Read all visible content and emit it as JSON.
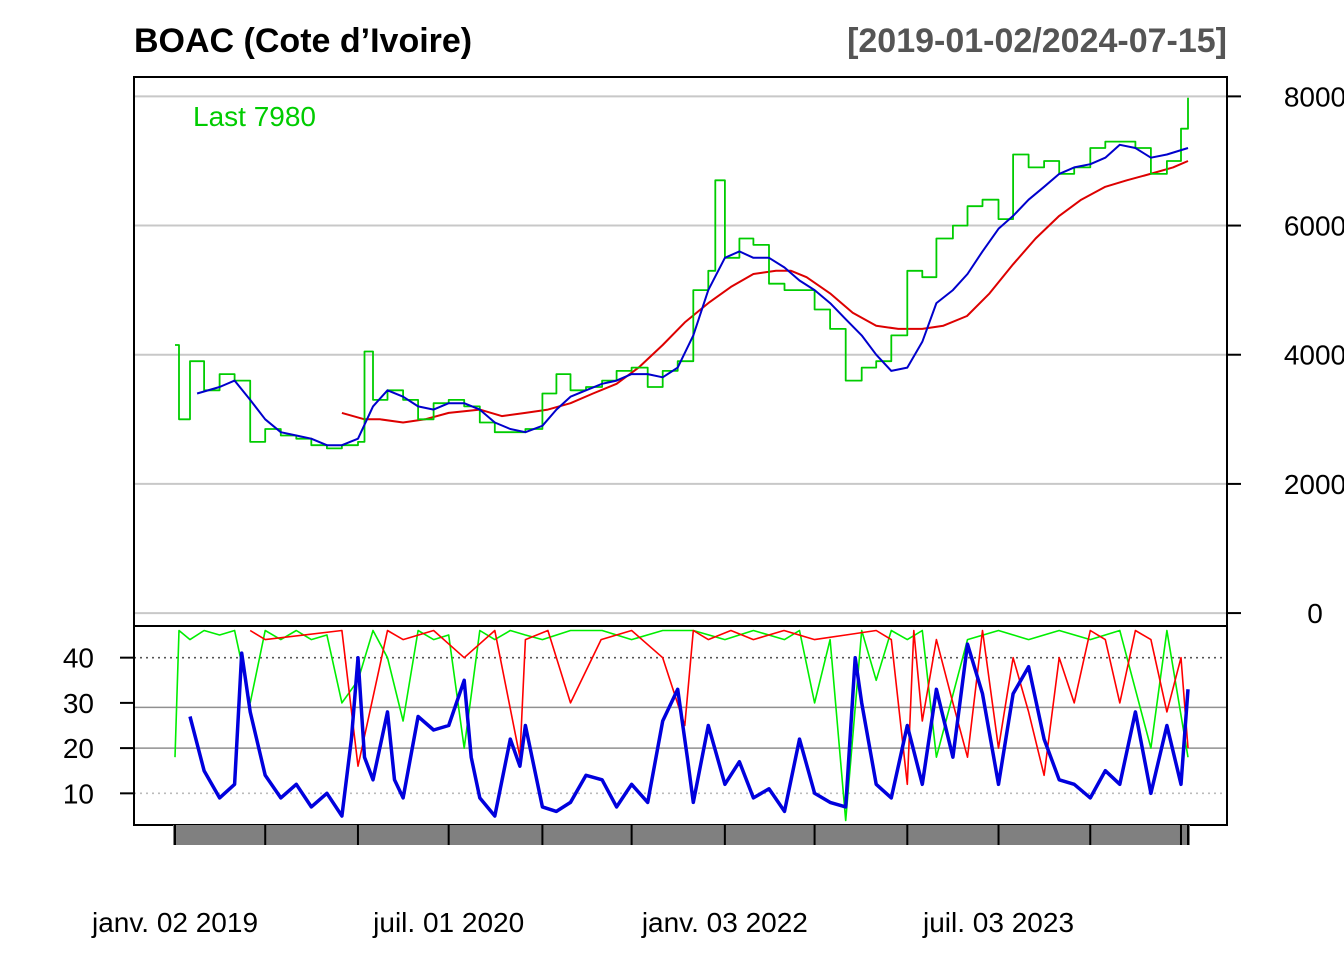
{
  "title": "BOAC (Cote d’Ivoire)",
  "date_range": "[2019-01-02/2024-07-15]",
  "colors": {
    "price": "#00cc00",
    "ma_short": "#0000cc",
    "ma_long": "#dd0000",
    "adx": "#0000dd",
    "di_plus": "#00ee00",
    "di_minus": "#ff0000",
    "grid": "#c8c8c8",
    "x_axis_band": "#808080"
  },
  "chart_data": [
    {
      "type": "line",
      "panel": "price",
      "last_label": "Last 7980",
      "ylim": [
        -200,
        8300
      ],
      "y_ticks": [
        0,
        2000,
        4000,
        6000,
        8000
      ],
      "y_tick_labels": [
        "0",
        "2000",
        "4000",
        "6000",
        "8000"
      ],
      "grid": true,
      "series": [
        {
          "key": "price",
          "x": [
            "2019-01-02",
            "2019-01-10",
            "2019-02-01",
            "2019-03-01",
            "2019-04-01",
            "2019-05-01",
            "2019-06-01",
            "2019-07-01",
            "2019-08-01",
            "2019-09-01",
            "2019-10-01",
            "2019-11-01",
            "2019-12-01",
            "2020-01-02",
            "2020-01-15",
            "2020-02-01",
            "2020-03-01",
            "2020-04-01",
            "2020-05-01",
            "2020-06-01",
            "2020-07-01",
            "2020-08-01",
            "2020-09-01",
            "2020-10-01",
            "2020-11-01",
            "2020-12-01",
            "2021-01-04",
            "2021-02-01",
            "2021-03-01",
            "2021-04-01",
            "2021-05-03",
            "2021-06-01",
            "2021-07-01",
            "2021-08-02",
            "2021-09-01",
            "2021-10-01",
            "2021-11-01",
            "2021-12-01",
            "2021-12-15",
            "2022-01-03",
            "2022-02-01",
            "2022-03-01",
            "2022-04-01",
            "2022-05-02",
            "2022-06-01",
            "2022-07-01",
            "2022-08-01",
            "2022-09-01",
            "2022-10-03",
            "2022-11-01",
            "2022-12-01",
            "2023-01-02",
            "2023-02-01",
            "2023-03-01",
            "2023-04-03",
            "2023-05-02",
            "2023-06-01",
            "2023-07-03",
            "2023-08-01",
            "2023-09-01",
            "2023-10-02",
            "2023-11-01",
            "2023-12-01",
            "2024-01-02",
            "2024-02-01",
            "2024-03-01",
            "2024-04-01",
            "2024-05-02",
            "2024-06-03",
            "2024-07-01",
            "2024-07-15"
          ],
          "values": [
            4150,
            3000,
            3900,
            3450,
            3700,
            3600,
            2650,
            2850,
            2750,
            2700,
            2600,
            2550,
            2600,
            2650,
            4050,
            3300,
            3450,
            3300,
            3000,
            3250,
            3300,
            3200,
            2950,
            2800,
            2800,
            2850,
            3400,
            3700,
            3450,
            3500,
            3600,
            3750,
            3800,
            3500,
            3750,
            3900,
            5000,
            5300,
            6700,
            5500,
            5800,
            5700,
            5100,
            5000,
            5000,
            4700,
            4400,
            3600,
            3800,
            3900,
            4300,
            5300,
            5200,
            5800,
            6000,
            6300,
            6400,
            6100,
            7100,
            6900,
            7000,
            6800,
            6900,
            7200,
            7300,
            7300,
            7200,
            6800,
            7000,
            7500,
            7980
          ]
        },
        {
          "key": "ma_short",
          "x": [
            "2019-02-15",
            "2019-04-01",
            "2019-05-01",
            "2019-06-01",
            "2019-07-01",
            "2019-08-01",
            "2019-09-01",
            "2019-10-01",
            "2019-11-01",
            "2019-12-01",
            "2020-01-02",
            "2020-02-01",
            "2020-03-01",
            "2020-04-01",
            "2020-05-01",
            "2020-06-01",
            "2020-07-01",
            "2020-08-01",
            "2020-09-01",
            "2020-10-01",
            "2020-11-01",
            "2020-12-01",
            "2021-01-04",
            "2021-02-01",
            "2021-03-01",
            "2021-04-01",
            "2021-05-03",
            "2021-06-01",
            "2021-07-01",
            "2021-08-02",
            "2021-09-01",
            "2021-10-01",
            "2021-11-01",
            "2021-12-01",
            "2022-01-03",
            "2022-02-01",
            "2022-03-01",
            "2022-04-01",
            "2022-05-02",
            "2022-06-01",
            "2022-07-01",
            "2022-08-01",
            "2022-09-01",
            "2022-10-03",
            "2022-11-01",
            "2022-12-01",
            "2023-01-02",
            "2023-02-01",
            "2023-03-01",
            "2023-04-03",
            "2023-05-02",
            "2023-06-01",
            "2023-07-03",
            "2023-08-01",
            "2023-09-01",
            "2023-10-02",
            "2023-11-01",
            "2023-12-01",
            "2024-01-02",
            "2024-02-01",
            "2024-03-01",
            "2024-04-01",
            "2024-05-02",
            "2024-06-03",
            "2024-07-15"
          ],
          "values": [
            3400,
            3500,
            3600,
            3300,
            3000,
            2800,
            2750,
            2700,
            2600,
            2600,
            2700,
            3200,
            3450,
            3350,
            3200,
            3150,
            3250,
            3250,
            3150,
            2950,
            2850,
            2800,
            2900,
            3150,
            3350,
            3450,
            3550,
            3600,
            3700,
            3700,
            3650,
            3800,
            4300,
            5000,
            5500,
            5600,
            5500,
            5500,
            5350,
            5150,
            5000,
            4800,
            4550,
            4300,
            4000,
            3750,
            3800,
            4200,
            4800,
            5000,
            5250,
            5600,
            5950,
            6150,
            6400,
            6600,
            6800,
            6900,
            6950,
            7050,
            7250,
            7200,
            7050,
            7100,
            7200
          ]
        },
        {
          "key": "ma_long",
          "x": [
            "2019-12-01",
            "2020-01-15",
            "2020-02-15",
            "2020-04-01",
            "2020-05-15",
            "2020-07-01",
            "2020-09-01",
            "2020-10-15",
            "2020-12-01",
            "2021-01-15",
            "2021-03-01",
            "2021-04-15",
            "2021-06-01",
            "2021-07-15",
            "2021-09-01",
            "2021-10-15",
            "2021-12-01",
            "2022-01-15",
            "2022-03-01",
            "2022-04-15",
            "2022-05-15",
            "2022-06-15",
            "2022-08-01",
            "2022-09-15",
            "2022-11-01",
            "2022-12-15",
            "2023-02-01",
            "2023-03-15",
            "2023-05-01",
            "2023-06-15",
            "2023-08-01",
            "2023-09-15",
            "2023-11-01",
            "2023-12-15",
            "2024-02-01",
            "2024-03-15",
            "2024-05-01",
            "2024-06-15",
            "2024-07-15"
          ],
          "values": [
            3100,
            3000,
            3000,
            2950,
            3000,
            3100,
            3150,
            3050,
            3100,
            3150,
            3250,
            3400,
            3550,
            3800,
            4150,
            4500,
            4800,
            5050,
            5250,
            5300,
            5300,
            5200,
            4950,
            4650,
            4450,
            4400,
            4400,
            4450,
            4600,
            4950,
            5400,
            5800,
            6150,
            6400,
            6600,
            6700,
            6800,
            6900,
            7000
          ]
        }
      ]
    },
    {
      "type": "line",
      "panel": "indicator",
      "ylim": [
        3,
        47
      ],
      "y_ticks": [
        10,
        20,
        30,
        40
      ],
      "y_tick_labels": [
        "10",
        "20",
        "30",
        "40"
      ],
      "reference_lines": [
        10,
        20,
        29,
        40
      ],
      "x_tick_labels": [
        "janv. 02 2019",
        "juil. 01 2020",
        "janv. 03 2022",
        "juil. 03 2023"
      ],
      "x_tick_dates": [
        "2019-01-02",
        "2020-07-01",
        "2022-01-03",
        "2023-07-03"
      ],
      "series": [
        {
          "key": "adx",
          "x": [
            "2019-02-01",
            "2019-03-01",
            "2019-04-01",
            "2019-05-01",
            "2019-05-15",
            "2019-06-01",
            "2019-07-01",
            "2019-08-01",
            "2019-09-01",
            "2019-10-01",
            "2019-11-01",
            "2019-12-01",
            "2019-12-20",
            "2020-01-02",
            "2020-01-15",
            "2020-02-01",
            "2020-03-01",
            "2020-03-15",
            "2020-04-01",
            "2020-05-01",
            "2020-06-01",
            "2020-07-01",
            "2020-08-01",
            "2020-08-15",
            "2020-09-01",
            "2020-10-01",
            "2020-11-01",
            "2020-11-20",
            "2020-12-01",
            "2021-01-04",
            "2021-02-01",
            "2021-03-01",
            "2021-04-01",
            "2021-05-03",
            "2021-06-01",
            "2021-07-01",
            "2021-08-02",
            "2021-09-01",
            "2021-10-01",
            "2021-10-20",
            "2021-11-01",
            "2021-12-01",
            "2022-01-03",
            "2022-02-01",
            "2022-03-01",
            "2022-04-01",
            "2022-05-02",
            "2022-06-01",
            "2022-07-01",
            "2022-08-01",
            "2022-09-01",
            "2022-09-20",
            "2022-10-03",
            "2022-11-01",
            "2022-12-01",
            "2023-01-02",
            "2023-02-01",
            "2023-03-01",
            "2023-04-03",
            "2023-05-02",
            "2023-06-01",
            "2023-07-03",
            "2023-08-01",
            "2023-09-01",
            "2023-10-02",
            "2023-11-01",
            "2023-12-01",
            "2024-01-02",
            "2024-02-01",
            "2024-03-01",
            "2024-04-01",
            "2024-05-02",
            "2024-06-03",
            "2024-07-01",
            "2024-07-15"
          ],
          "values": [
            27,
            15,
            9,
            12,
            41,
            28,
            14,
            9,
            12,
            7,
            10,
            5,
            22,
            40,
            18,
            13,
            28,
            13,
            9,
            27,
            24,
            25,
            35,
            18,
            9,
            5,
            22,
            16,
            25,
            7,
            6,
            8,
            14,
            13,
            7,
            12,
            8,
            26,
            33,
            18,
            8,
            25,
            12,
            17,
            9,
            11,
            6,
            22,
            10,
            8,
            7,
            40,
            30,
            12,
            9,
            25,
            12,
            33,
            18,
            43,
            32,
            12,
            32,
            38,
            22,
            13,
            12,
            9,
            15,
            12,
            28,
            10,
            25,
            12,
            33
          ]
        },
        {
          "key": "di_plus",
          "x": [
            "2019-01-02",
            "2019-01-10",
            "2019-02-01",
            "2019-03-01",
            "2019-04-01",
            "2019-05-01",
            "2019-06-01",
            "2019-07-01",
            "2019-08-01",
            "2019-09-01",
            "2019-10-01",
            "2019-11-01",
            "2019-12-01",
            "2020-01-02",
            "2020-02-01",
            "2020-03-01",
            "2020-04-01",
            "2020-05-01",
            "2020-06-01",
            "2020-07-01",
            "2020-08-01",
            "2020-09-01",
            "2020-10-01",
            "2020-11-01",
            "2020-12-01",
            "2021-01-04",
            "2021-03-01",
            "2021-05-03",
            "2021-07-01",
            "2021-09-01",
            "2021-11-01",
            "2022-01-03",
            "2022-03-01",
            "2022-05-02",
            "2022-06-01",
            "2022-07-01",
            "2022-08-01",
            "2022-09-01",
            "2022-10-03",
            "2022-11-01",
            "2022-12-01",
            "2023-01-02",
            "2023-02-01",
            "2023-03-01",
            "2023-05-02",
            "2023-07-03",
            "2023-09-01",
            "2023-11-01",
            "2024-01-02",
            "2024-03-01",
            "2024-05-02",
            "2024-06-03",
            "2024-07-15"
          ],
          "values": [
            18,
            46,
            44,
            46,
            45,
            46,
            30,
            46,
            44,
            46,
            44,
            45,
            30,
            35,
            46,
            40,
            26,
            46,
            44,
            45,
            20,
            46,
            44,
            46,
            45,
            44,
            46,
            46,
            44,
            46,
            46,
            44,
            46,
            44,
            46,
            30,
            44,
            4,
            46,
            35,
            46,
            44,
            46,
            18,
            44,
            46,
            44,
            46,
            44,
            46,
            20,
            46,
            18
          ]
        },
        {
          "key": "di_minus",
          "x": [
            "2019-06-01",
            "2019-07-01",
            "2019-12-01",
            "2020-01-02",
            "2020-03-01",
            "2020-04-01",
            "2020-06-01",
            "2020-08-01",
            "2020-10-01",
            "2020-11-20",
            "2020-12-01",
            "2021-01-15",
            "2021-03-01",
            "2021-05-01",
            "2021-07-01",
            "2021-09-01",
            "2021-10-15",
            "2021-11-01",
            "2021-12-01",
            "2022-01-15",
            "2022-03-01",
            "2022-05-01",
            "2022-07-01",
            "2022-09-01",
            "2022-11-01",
            "2022-12-01",
            "2023-01-02",
            "2023-01-15",
            "2023-02-01",
            "2023-03-01",
            "2023-04-03",
            "2023-05-02",
            "2023-06-01",
            "2023-07-03",
            "2023-08-01",
            "2023-09-01",
            "2023-10-02",
            "2023-11-01",
            "2023-12-01",
            "2024-01-02",
            "2024-02-01",
            "2024-03-01",
            "2024-04-01",
            "2024-05-02",
            "2024-06-03",
            "2024-07-01",
            "2024-07-15"
          ],
          "values": [
            46,
            44,
            46,
            16,
            46,
            44,
            46,
            40,
            46,
            18,
            44,
            46,
            30,
            44,
            46,
            40,
            25,
            46,
            44,
            46,
            44,
            46,
            44,
            45,
            46,
            44,
            12,
            46,
            26,
            44,
            30,
            18,
            46,
            20,
            40,
            28,
            14,
            40,
            30,
            46,
            44,
            30,
            46,
            44,
            28,
            40,
            20
          ]
        }
      ]
    }
  ]
}
